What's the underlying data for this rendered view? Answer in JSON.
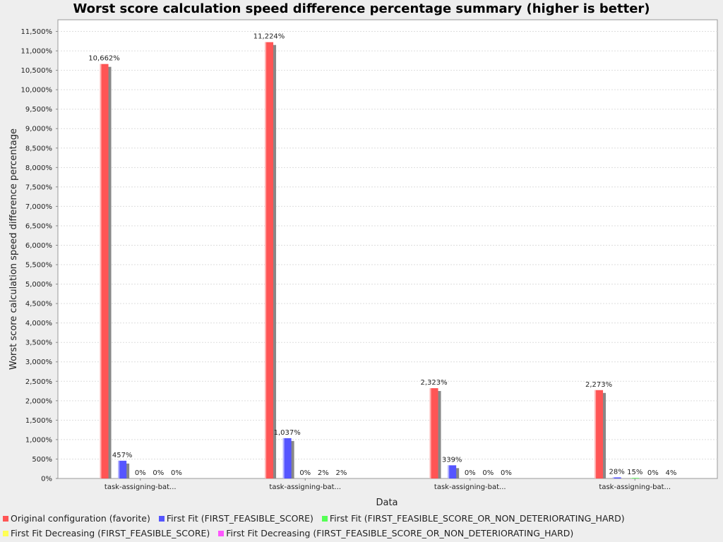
{
  "chart_data": {
    "type": "bar",
    "title": "Worst score calculation speed difference percentage summary (higher is better)",
    "xlabel": "Data",
    "ylabel": "Worst score calculation speed difference percentage",
    "ylim": [
      0,
      11800
    ],
    "ytick_step": 500,
    "ytick_labels": [
      "0%",
      "500%",
      "1,000%",
      "1,500%",
      "2,000%",
      "2,500%",
      "3,000%",
      "3,500%",
      "4,000%",
      "4,500%",
      "5,000%",
      "5,500%",
      "6,000%",
      "6,500%",
      "7,000%",
      "7,500%",
      "8,000%",
      "8,500%",
      "9,000%",
      "9,500%",
      "10,000%",
      "10,500%",
      "11,000%",
      "11,500%"
    ],
    "grid": true,
    "legend_position": "bottom",
    "categories": [
      "task-assigning-bat...",
      "task-assigning-bat...",
      "task-assigning-bat...",
      "task-assigning-bat..."
    ],
    "series": [
      {
        "name": "Original configuration (favorite)",
        "color": "#ff5555",
        "values": [
          10662,
          11224,
          2323,
          2273
        ],
        "labels": [
          "10,662%",
          "11,224%",
          "2,323%",
          "2,273%"
        ]
      },
      {
        "name": "First Fit (FIRST_FEASIBLE_SCORE)",
        "color": "#5555ff",
        "values": [
          457,
          1037,
          339,
          28
        ],
        "labels": [
          "457%",
          "1,037%",
          "339%",
          "28%"
        ]
      },
      {
        "name": "First Fit (FIRST_FEASIBLE_SCORE_OR_NON_DETERIORATING_HARD)",
        "color": "#55ff55",
        "values": [
          0,
          0,
          0,
          15
        ],
        "labels": [
          "0%",
          "0%",
          "0%",
          "15%"
        ]
      },
      {
        "name": "First Fit Decreasing (FIRST_FEASIBLE_SCORE)",
        "color": "#ffff55",
        "values": [
          0,
          2,
          0,
          0
        ],
        "labels": [
          "0%",
          "2%",
          "0%",
          "0%"
        ]
      },
      {
        "name": "First Fit Decreasing (FIRST_FEASIBLE_SCORE_OR_NON_DETERIORATING_HARD)",
        "color": "#ff55ff",
        "values": [
          0,
          2,
          0,
          4
        ],
        "labels": [
          "0%",
          "2%",
          "0%",
          "4%"
        ]
      }
    ]
  }
}
